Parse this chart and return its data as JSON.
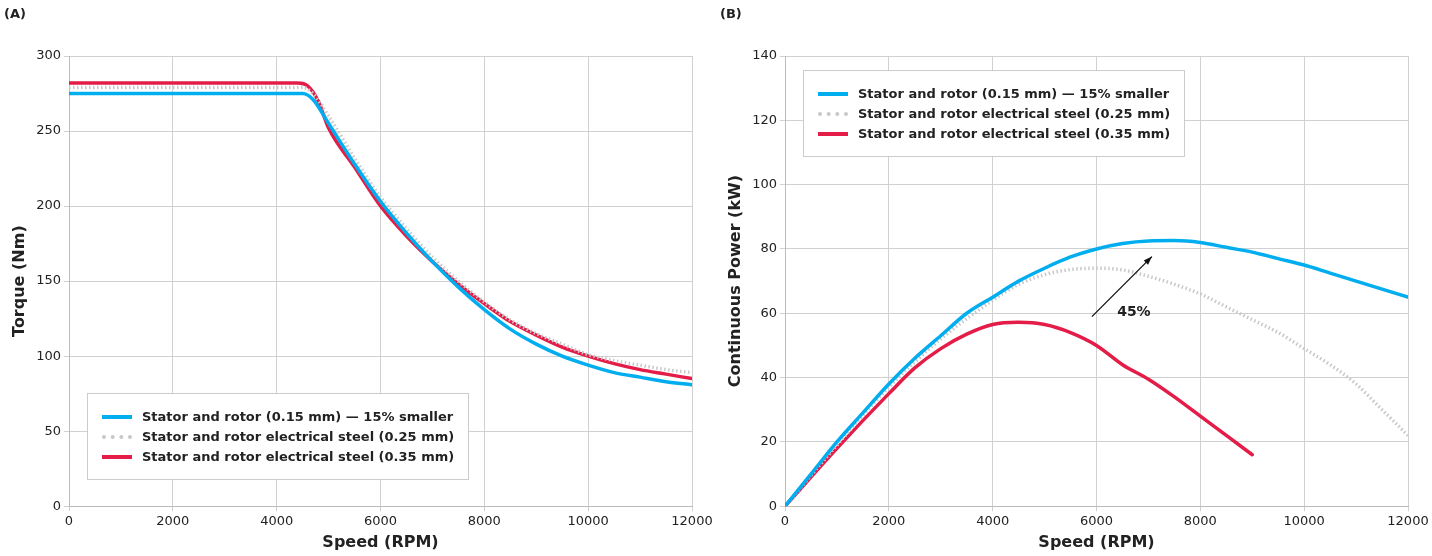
{
  "chart_data": [
    {
      "type": "line",
      "title": "(A)",
      "xlabel": "Speed (RPM)",
      "ylabel": "Torque (Nm)",
      "xlim": [
        0,
        12000
      ],
      "xticks": [
        0,
        2000,
        4000,
        6000,
        8000,
        10000,
        12000
      ],
      "ylim": [
        0,
        300
      ],
      "yticks": [
        0,
        50,
        100,
        150,
        200,
        250,
        300
      ],
      "grid": true,
      "legend": "bottom",
      "marker": "none",
      "series": [
        {
          "name": "Stator and rotor (0.15 mm) — 15% smaller",
          "color": "#00aeef",
          "line_style": "solid",
          "x": [
            0,
            1000,
            2000,
            3000,
            4000,
            4500,
            4700,
            5000,
            5500,
            6000,
            6500,
            7000,
            7500,
            8000,
            8500,
            9000,
            9500,
            10000,
            10500,
            11000,
            11500,
            12000
          ],
          "values": [
            275,
            275,
            275,
            275,
            275,
            275,
            271,
            255,
            228,
            203,
            182,
            163,
            146,
            131,
            118,
            108,
            100,
            94,
            89,
            86,
            83,
            81
          ]
        },
        {
          "name": "Stator and rotor electrical steel (0.25 mm)",
          "color": "#c8c8c8",
          "line_style": "dotted",
          "x": [
            0,
            1000,
            2000,
            3000,
            4000,
            4500,
            4700,
            5000,
            5500,
            6000,
            6500,
            7000,
            7500,
            8000,
            8500,
            9000,
            9500,
            10000,
            10500,
            11000,
            11500,
            12000
          ],
          "values": [
            279,
            279,
            279,
            279,
            279,
            279,
            275,
            260,
            232,
            206,
            185,
            166,
            150,
            136,
            124,
            115,
            108,
            101,
            97,
            94,
            91,
            89
          ]
        },
        {
          "name": "Stator and rotor electrical steel (0.35 mm)",
          "color": "#e31c48",
          "line_style": "solid",
          "x": [
            0,
            1000,
            2000,
            3000,
            4000,
            4400,
            4600,
            4800,
            5000,
            5500,
            6000,
            6500,
            7000,
            7500,
            8000,
            8500,
            9000,
            9500,
            10000,
            10500,
            11000,
            11500,
            12000
          ],
          "values": [
            282,
            282,
            282,
            282,
            282,
            282,
            280,
            270,
            252,
            226,
            200,
            180,
            163,
            148,
            135,
            123,
            114,
            106,
            100,
            95,
            91,
            88,
            85
          ]
        }
      ]
    },
    {
      "type": "line",
      "title": "(B)",
      "xlabel": "Speed (RPM)",
      "ylabel": "Continuous Power (kW)",
      "xlim": [
        0,
        12000
      ],
      "xticks": [
        0,
        2000,
        4000,
        6000,
        8000,
        10000,
        12000
      ],
      "ylim": [
        0,
        140
      ],
      "yticks": [
        0,
        20,
        40,
        60,
        80,
        100,
        120,
        140
      ],
      "grid": true,
      "legend": "top left",
      "marker": "none",
      "annotations": [
        "45%"
      ],
      "series": [
        {
          "name": "Stator and rotor (0.15 mm) — 15% smaller",
          "color": "#00aeef",
          "line_style": "solid",
          "x": [
            0,
            500,
            1000,
            1500,
            2000,
            2500,
            3000,
            3500,
            4000,
            4500,
            5000,
            5500,
            6000,
            6500,
            7000,
            7500,
            8000,
            8500,
            9000,
            9500,
            10000,
            10500,
            11000,
            11500,
            12000
          ],
          "values": [
            0,
            10,
            20,
            29,
            38,
            46,
            53,
            60,
            65,
            70,
            74,
            77.5,
            80,
            81.7,
            82.5,
            82.6,
            82,
            80.5,
            79,
            77,
            75,
            72.5,
            70,
            67.5,
            65
          ]
        },
        {
          "name": "Stator and rotor electrical steel (0.25 mm)",
          "color": "#c8c8c8",
          "line_style": "dotted",
          "x": [
            0,
            1000,
            2000,
            3000,
            4000,
            4500,
            5000,
            5500,
            6000,
            6500,
            7000,
            7500,
            8000,
            8500,
            9000,
            9500,
            10000,
            10500,
            11000,
            11500,
            12000
          ],
          "values": [
            0,
            19,
            37,
            52,
            64,
            69,
            72,
            73.6,
            74,
            73.5,
            71.5,
            69,
            66,
            62,
            58,
            54,
            49,
            44,
            38,
            30,
            22
          ]
        },
        {
          "name": "Stator and rotor electrical steel (0.35 mm)",
          "color": "#e31c48",
          "line_style": "solid",
          "x": [
            0,
            1000,
            2000,
            2500,
            3000,
            3500,
            4000,
            4500,
            5000,
            5500,
            6000,
            6500,
            7000,
            7500,
            8000,
            8500,
            9000
          ],
          "values": [
            0,
            18,
            35,
            43,
            49,
            53.5,
            56.5,
            57.2,
            56.5,
            54,
            50,
            44,
            39.5,
            34,
            28,
            22,
            16
          ]
        }
      ]
    }
  ]
}
